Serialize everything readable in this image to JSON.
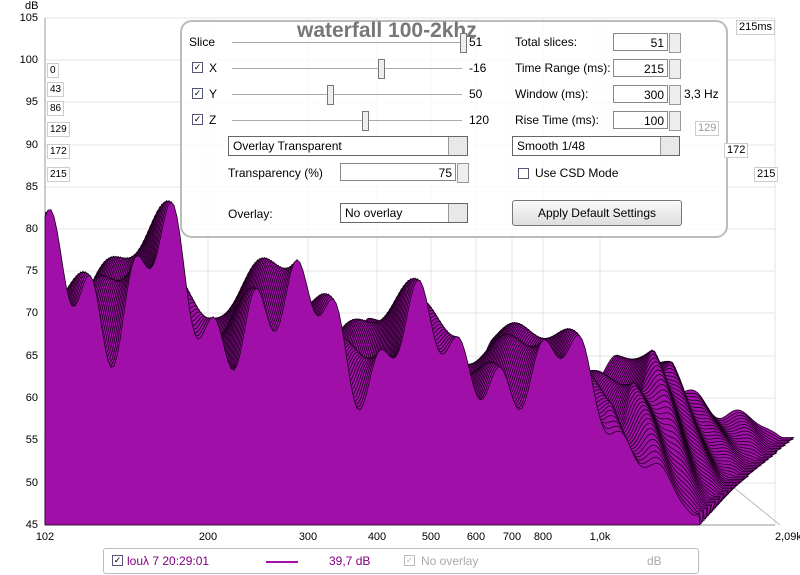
{
  "axes": {
    "y_unit": "dB",
    "y_ticks": [
      "105",
      "100",
      "95",
      "90",
      "85",
      "80",
      "75",
      "70",
      "65",
      "60",
      "55",
      "50",
      "45"
    ],
    "x_ticks": [
      "102",
      "200",
      "300",
      "400",
      "500",
      "600",
      "700",
      "800",
      "1,0k",
      "2,09k Hz"
    ],
    "z_left": [
      "0",
      "43",
      "86",
      "129",
      "172",
      "215"
    ],
    "z_right": [
      "129",
      "172",
      "215",
      "215ms"
    ]
  },
  "panel": {
    "title": "waterfall 100-2khz",
    "sliders": [
      {
        "label": "Slice",
        "value": "51"
      },
      {
        "label": "X",
        "value": "-16"
      },
      {
        "label": "Y",
        "value": "50"
      },
      {
        "label": "Z",
        "value": "120"
      }
    ],
    "fields": [
      {
        "label": "Total slices:",
        "value": "51"
      },
      {
        "label": "Time Range (ms):",
        "value": "215"
      },
      {
        "label": "Window (ms):",
        "value": "300",
        "note": "3,3 Hz"
      },
      {
        "label": "Rise Time (ms):",
        "value": "100"
      }
    ],
    "overlay_mode": "Overlay Transparent",
    "smoothing": "Smooth 1/48",
    "transparency_label": "Transparency (%)",
    "transparency": "75",
    "csd_mode": "Use CSD Mode",
    "overlay_label": "Overlay:",
    "overlay": "No overlay",
    "button": "Apply Default Settings"
  },
  "legend": {
    "name": "louλ 7 20:29:01",
    "level": "39,7 dB",
    "overlay": "No overlay",
    "unit": "dB"
  }
}
